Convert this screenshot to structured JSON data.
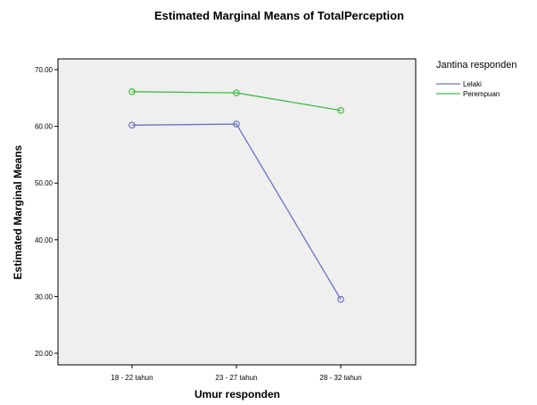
{
  "chart_data": {
    "type": "line",
    "title": "Estimated Marginal Means of TotalPerception",
    "xlabel": "Umur responden",
    "ylabel": "Estimated Marginal Means",
    "categories": [
      "18 - 22 tahun",
      "23 - 27 tahun",
      "28 - 32 tahun"
    ],
    "yticks": [
      "20.00",
      "30.00",
      "40.00",
      "50.00",
      "60.00",
      "70.00"
    ],
    "ylim": [
      20,
      70
    ],
    "legend_title": "Jantina responden",
    "legend_position": "top-right",
    "grid": false,
    "series": [
      {
        "name": "Lelaki",
        "color": "#6a74c4",
        "values": [
          60.2,
          60.4,
          29.5
        ]
      },
      {
        "name": "Perempuan",
        "color": "#3fbf3f",
        "values": [
          66.1,
          65.9,
          62.8
        ]
      }
    ],
    "colors": {
      "plot_background": "#efefef"
    }
  }
}
